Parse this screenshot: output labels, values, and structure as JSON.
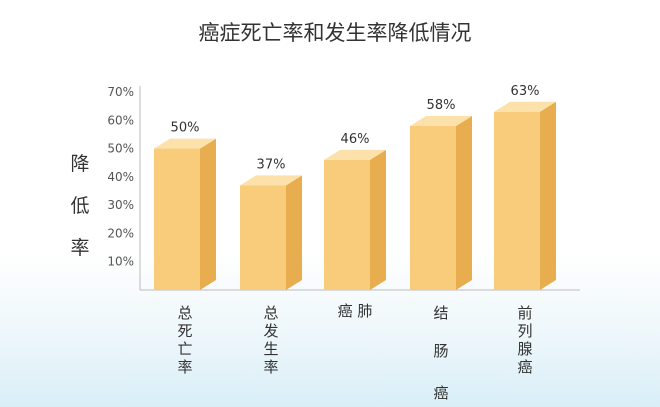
{
  "chart_data": {
    "type": "bar",
    "title": "癌症死亡率和发生率降低情况",
    "ylabel": "降低率",
    "xlabel": "",
    "ylim": [
      0,
      70
    ],
    "yticks": [
      "10%",
      "20%",
      "30%",
      "40%",
      "50%",
      "60%",
      "70%"
    ],
    "categories": [
      "总死亡率",
      "总发生率",
      "癌肺",
      "结肠癌",
      "前列腺癌"
    ],
    "values": [
      50,
      37,
      46,
      58,
      63
    ],
    "data_labels": [
      "50%",
      "37%",
      "46%",
      "58%",
      "63%"
    ],
    "grid": false,
    "colors": {
      "bar_front": "#f9cc7c",
      "bar_side": "#e8ad4e",
      "bar_top": "#fce2aa",
      "axis": "#bbbbbb"
    }
  }
}
